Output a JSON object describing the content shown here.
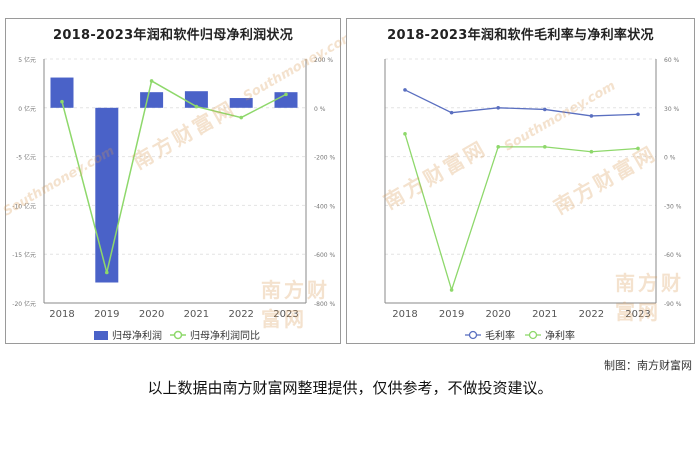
{
  "footer": {
    "credit": "制图：南方财富网",
    "disclaimer": "以上数据由南方财富网整理提供，仅供参考，不做投资建议。"
  },
  "watermark": {
    "cn": "南方财富网",
    "en": "Southmoney.com"
  },
  "colors": {
    "bar": "#4a62c8",
    "green": "#8ed86b",
    "blue": "#5a6fc0",
    "grid": "#e4e4e4",
    "axis": "#888888"
  },
  "chart_data": [
    {
      "type": "bar",
      "title": "2018-2023年润和软件归母净利润状况",
      "categories": [
        "2018",
        "2019",
        "2020",
        "2021",
        "2022",
        "2023"
      ],
      "y_left": {
        "ticks": [
          "5 亿元",
          "0 亿元",
          "-5 亿元",
          "-10 亿元",
          "-15 亿元",
          "-20 亿元"
        ],
        "min": -20,
        "max": 5
      },
      "y_right": {
        "ticks": [
          "200 %",
          "0 %",
          "-200 %",
          "-400 %",
          "-600 %",
          "-800 %"
        ],
        "min": -800,
        "max": 200
      },
      "series": [
        {
          "name": "归母净利润",
          "type": "bar",
          "axis": "left",
          "values": [
            3.1,
            -17.9,
            1.6,
            1.7,
            1.0,
            1.6
          ]
        },
        {
          "name": "归母净利润同比",
          "type": "line",
          "axis": "right",
          "values": [
            25,
            -675,
            110,
            5,
            -40,
            55
          ]
        }
      ],
      "grid": true
    },
    {
      "type": "line",
      "title": "2018-2023年润和软件毛利率与净利率状况",
      "categories": [
        "2018",
        "2019",
        "2020",
        "2021",
        "2022",
        "2023"
      ],
      "y_right": {
        "ticks": [
          "60 %",
          "30 %",
          "0 %",
          "-30 %",
          "-60 %",
          "-90 %"
        ],
        "min": -90,
        "max": 60
      },
      "series": [
        {
          "name": "毛利率",
          "color": "blue",
          "values": [
            41,
            27,
            30,
            29,
            25,
            26
          ]
        },
        {
          "name": "净利率",
          "color": "green",
          "values": [
            14,
            -82,
            6,
            6,
            3,
            5
          ]
        }
      ],
      "grid": true
    }
  ]
}
